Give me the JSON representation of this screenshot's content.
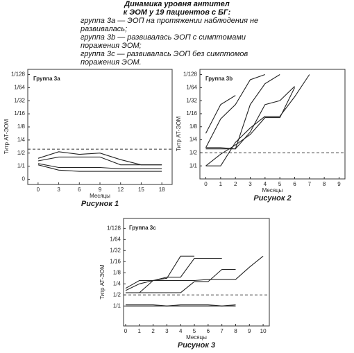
{
  "header": {
    "title_lines": [
      "Динамика уровня антител",
      "к ЭОМ у 19 пациентов с БГ:"
    ],
    "lines": [
      "группа 3a — ЭОП на протяжении наблюдения не",
      "развивалась;",
      "группа 3b — развивалась ЭОП с симптомами",
      "поражения ЭОМ;",
      "группа 3c — развивалась ЭОП без симптомов",
      "поражения ЭОМ."
    ]
  },
  "chart_data": [
    {
      "type": "line",
      "title": "Группа 3a",
      "caption": "Рисунок 1",
      "ylabel": "Титр АТ-ЭОМ",
      "xlabel": "Месяцы",
      "line_color": "#222",
      "threshold": 2.3,
      "x": [
        0,
        3,
        6,
        9,
        12,
        15,
        18
      ],
      "xlim": [
        -1.5,
        19.5
      ],
      "xticks": [
        0,
        3,
        6,
        9,
        12,
        15,
        18
      ],
      "ylim": [
        -0.4,
        8.4
      ],
      "yticks": [
        0,
        {
          "value": 1,
          "label": "1/1"
        },
        {
          "value": 2,
          "label": "1/2"
        },
        {
          "value": 3,
          "label": "1/4"
        },
        {
          "value": 4,
          "label": "1/8"
        },
        {
          "value": 5,
          "label": "1/16"
        },
        {
          "value": 6,
          "label": "1/32"
        },
        {
          "value": 7,
          "label": "1/64"
        },
        {
          "value": 8,
          "label": "1/128"
        }
      ],
      "series": [
        {
          "values": [
            1.6,
            2.1,
            1.9,
            2.0,
            1.5,
            1.1,
            1.1
          ]
        },
        {
          "values": [
            1.4,
            1.7,
            1.7,
            1.7,
            1.1,
            1.1,
            1.1
          ]
        },
        {
          "values": [
            1.2,
            0.9,
            0.9,
            0.9,
            0.8,
            0.8,
            0.8
          ]
        },
        {
          "values": [
            1.1,
            0.7,
            0.6,
            0.6,
            0.6,
            0.6,
            0.6
          ]
        }
      ]
    },
    {
      "type": "line",
      "title": "Группа 3b",
      "caption": "Рисунок 2",
      "ylabel": "Титр АТ-ЭОМ",
      "xlabel": "Месяцы",
      "line_color": "#222",
      "threshold": 2,
      "x": [
        0,
        1,
        2,
        3,
        4,
        5,
        6,
        7,
        8,
        9
      ],
      "xlim": [
        -0.4,
        9.4
      ],
      "xticks": [
        0,
        1,
        2,
        3,
        4,
        5,
        6,
        7,
        8,
        9
      ],
      "ylim": [
        0,
        8.4
      ],
      "yticks": [
        {
          "value": 1,
          "label": "1/1"
        },
        {
          "value": 2,
          "label": "1/2"
        },
        {
          "value": 3,
          "label": "1/4"
        },
        {
          "value": 4,
          "label": "1/8"
        },
        {
          "value": 5,
          "label": "1/16"
        },
        {
          "value": 6,
          "label": "1/32"
        },
        {
          "value": 7,
          "label": "1/64"
        },
        {
          "value": 8,
          "label": "1/128"
        }
      ],
      "series": [
        {
          "values": [
            3.5,
            5.7,
            6.4,
            null,
            null,
            null,
            null,
            null,
            null,
            null
          ]
        },
        {
          "values": [
            2.4,
            4.6,
            5.7,
            7.6,
            8,
            null,
            null,
            null,
            null,
            null
          ]
        },
        {
          "values": [
            2.4,
            2.4,
            2.3,
            5.7,
            7.3,
            8,
            null,
            null,
            null,
            null
          ]
        },
        {
          "values": [
            2.3,
            2.3,
            2.3,
            3.6,
            5.7,
            6.0,
            7.1,
            null,
            null,
            null
          ]
        },
        {
          "values": [
            1.0,
            1.0,
            2.8,
            3.9,
            4.8,
            4.8,
            6.3,
            8,
            null,
            null
          ]
        },
        {
          "values": [
            1.0,
            1.9,
            2.6,
            3.4,
            4.7,
            4.7,
            7.0,
            null,
            null,
            null
          ]
        }
      ]
    },
    {
      "type": "line",
      "title": "Группа 3c",
      "caption": "Рисунок 3",
      "ylabel": "Титр АТ-ЭОМ",
      "xlabel": "Месяцы",
      "line_color": "#222",
      "threshold": 2,
      "x": [
        0,
        1,
        2,
        3,
        4,
        5,
        6,
        7,
        8,
        9,
        10
      ],
      "xlim": [
        -0.15,
        10.45
      ],
      "xticks": [
        0,
        1,
        2,
        3,
        4,
        5,
        6,
        7,
        8,
        9,
        10
      ],
      "ylim": [
        -0.8,
        8.9
      ],
      "yticks": [
        {
          "value": 1,
          "label": "1/1"
        },
        {
          "value": 2,
          "label": "1/2"
        },
        {
          "value": 3,
          "label": "1/4"
        },
        {
          "value": 4,
          "label": "1/8"
        },
        {
          "value": 5,
          "label": "1/16"
        },
        {
          "value": 6,
          "label": "1/32"
        },
        {
          "value": 7,
          "label": "1/64"
        },
        {
          "value": 8,
          "label": "1/128"
        }
      ],
      "series": [
        {
          "values": [
            2.6,
            3.3,
            3.3,
            3.5,
            5.5,
            5.5,
            null,
            null,
            null,
            null,
            null
          ]
        },
        {
          "values": [
            2.4,
            3.0,
            3.3,
            3.6,
            3.6,
            5.3,
            5.3,
            5.3,
            null,
            null,
            null
          ]
        },
        {
          "values": [
            2.2,
            2.2,
            2.2,
            2.2,
            2.2,
            3.2,
            3.2,
            4.3,
            4.3,
            null,
            null
          ]
        },
        {
          "values": [
            2.2,
            2.2,
            3.3,
            3.3,
            3.3,
            3.3,
            3.4,
            3.4,
            3.4,
            4.5,
            5.5
          ]
        },
        {
          "values": [
            1.1,
            1.1,
            1.1,
            1.0,
            1.1,
            1.1,
            1.1,
            1.0,
            1.1,
            null,
            null
          ]
        },
        {
          "values": [
            1.0,
            1.0,
            1.0,
            1.0,
            1.0,
            1.0,
            1.0,
            1.0,
            1.0,
            null,
            null
          ]
        }
      ]
    }
  ]
}
